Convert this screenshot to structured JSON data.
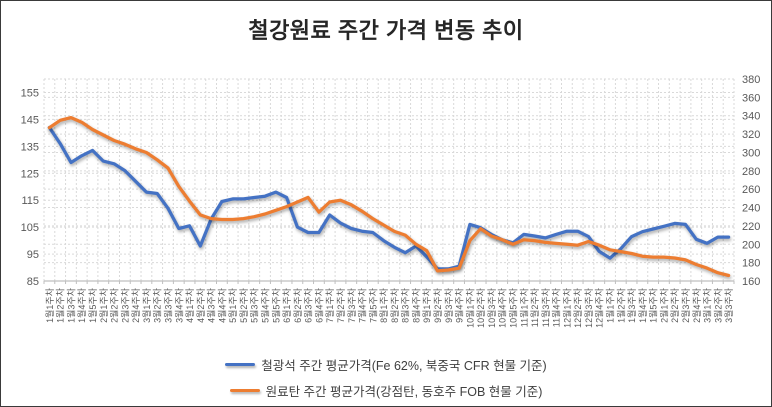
{
  "title": "철강원료 주간 가격 변동 추이",
  "chart_data": {
    "type": "line",
    "title": "철강원료 주간 가격 변동 추이",
    "grid": "dashed",
    "gridline_color": "#d9d9d9",
    "axis_text_color": "#595959",
    "legend_position": "bottom",
    "categories": [
      "1월1주차",
      "1월2주차",
      "1월3주차",
      "1월4주차",
      "1월5주차",
      "2월1주차",
      "2월2주차",
      "2월3주차",
      "2월4주차",
      "3월1주차",
      "3월2주차",
      "3월3주차",
      "3월4주차",
      "4월1주차",
      "4월2주차",
      "4월3주차",
      "4월4주차",
      "5월1주차",
      "5월2주차",
      "5월3주차",
      "5월4주차",
      "5월5주차",
      "6월1주차",
      "6월2주차",
      "6월3주차",
      "6월4주차",
      "7월1주차",
      "7월2주차",
      "7월3주차",
      "7월4주차",
      "7월5주차",
      "8월1주차",
      "8월2주차",
      "8월3주차",
      "8월4주차",
      "9월1주차",
      "9월2주차",
      "9월3주차",
      "9월4주차",
      "10월1주차",
      "10월2주차",
      "10월3주차",
      "10월4주차",
      "10월5주차",
      "11월1주차",
      "11월2주차",
      "11월3주차",
      "11월4주차",
      "12월1주차",
      "12월2주차",
      "12월3주차",
      "12월4주차",
      "1월1주차",
      "1월2주차",
      "1월3주차",
      "1월4주차",
      "1월5주차",
      "2월1주차",
      "2월2주차",
      "2월3주차",
      "2월4주차",
      "3월1주차",
      "3월2주차",
      "3월3주차"
    ],
    "left_axis": {
      "min": 85,
      "max": 160,
      "ticks": [
        155,
        145,
        135,
        125,
        115,
        105,
        95,
        85
      ]
    },
    "right_axis": {
      "min": 160,
      "max": 380,
      "ticks": [
        380,
        360,
        340,
        320,
        300,
        280,
        260,
        240,
        220,
        200,
        180,
        160
      ]
    },
    "series": [
      {
        "name": "철광석 주간 평균가격(Fe 62%, 북중국 CFR 현물 기준)",
        "color": "#4472C4",
        "axis": "left",
        "values": [
          142,
          136,
          129,
          131.5,
          133.5,
          129.5,
          128.5,
          126,
          122,
          118,
          117.5,
          112,
          104.5,
          105.5,
          98,
          108,
          114.5,
          115.5,
          115.5,
          116,
          116.5,
          118,
          116,
          105,
          103,
          103,
          109.5,
          106.5,
          104.5,
          103.5,
          103,
          100,
          97.5,
          95.5,
          98,
          94,
          89.5,
          89.5,
          90.5,
          106,
          104.8,
          102.3,
          100.3,
          99.2,
          102.3,
          101.7,
          101,
          102.3,
          103.5,
          103.5,
          101.5,
          96,
          93.5,
          97,
          101.5,
          103.3,
          104.3,
          105.3,
          106.4,
          106,
          100.5,
          99,
          101.3,
          101.3
        ]
      },
      {
        "name": "원료탄 주간 평균가격(강점탄, 동호주 FOB 현물 기준)",
        "color": "#ED7D31",
        "axis": "right",
        "values": [
          327,
          335,
          338,
          333,
          325,
          319,
          313,
          309,
          304,
          300,
          292,
          283,
          263,
          247,
          232,
          228,
          227,
          227,
          228,
          230,
          233,
          237,
          241,
          246,
          251,
          235,
          246,
          248,
          243,
          236,
          228,
          221,
          214,
          210,
          200,
          193,
          171,
          172,
          174,
          204,
          217,
          209,
          205,
          200,
          205,
          204,
          202,
          201,
          200,
          199,
          203,
          199,
          194,
          192,
          190,
          187,
          186,
          186,
          185,
          183,
          178,
          174,
          169,
          166
        ]
      }
    ]
  }
}
